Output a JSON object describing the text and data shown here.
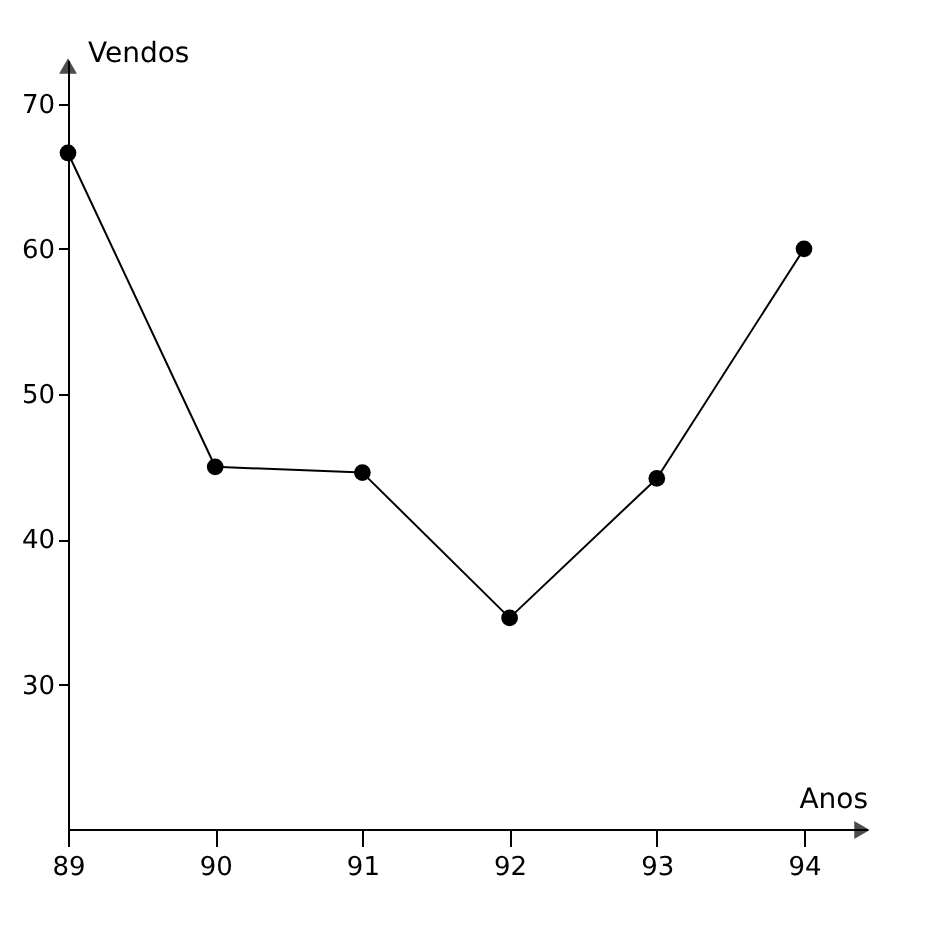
{
  "chart_data": {
    "type": "line",
    "xlabel": "Anos",
    "ylabel": "Vendos",
    "categories": [
      "89",
      "90",
      "91",
      "92",
      "93",
      "94"
    ],
    "series": [
      {
        "color": "#000000",
        "values": [
          66.6,
          45.0,
          44.6,
          34.6,
          44.2,
          60.0
        ]
      }
    ],
    "ylim": [
      20,
      73
    ],
    "yticks": [
      30,
      40,
      50,
      60,
      70
    ],
    "grid": false,
    "marker": "circle",
    "line_style": "solid"
  }
}
